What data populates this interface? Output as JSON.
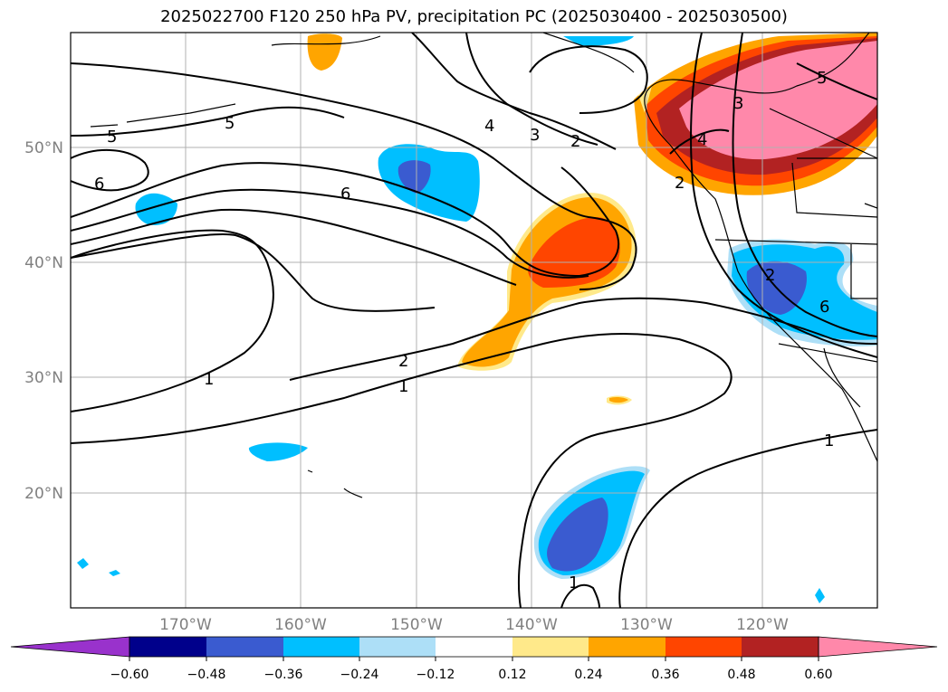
{
  "title": "2025022700 F120 250 hPa PV, precipitation PC (2025030400 - 2025030500)",
  "map": {
    "lat_labels": [
      "50°N",
      "40°N",
      "30°N",
      "20°N"
    ],
    "lon_labels": [
      "170°W",
      "160°W",
      "150°W",
      "140°W",
      "130°W",
      "120°W"
    ],
    "gridlines": true,
    "contour_labels": [
      "5",
      "5",
      "6",
      "6",
      "4",
      "3",
      "2",
      "2",
      "1",
      "1",
      "1",
      "1",
      "2",
      "6",
      "4",
      "2",
      "3",
      "5"
    ]
  },
  "colorbar": {
    "ticks": [
      "−0.60",
      "−0.48",
      "−0.36",
      "−0.24",
      "−0.12",
      "0.12",
      "0.24",
      "0.36",
      "0.48",
      "0.60"
    ],
    "colors": [
      "#9932CC",
      "#00008B",
      "#3A5BD0",
      "#00BFFF",
      "#ADDFF7",
      "#FFFFFF",
      "#FFE98A",
      "#FFA500",
      "#FF4500",
      "#B22222",
      "#FF88AA"
    ],
    "extend": "both"
  }
}
